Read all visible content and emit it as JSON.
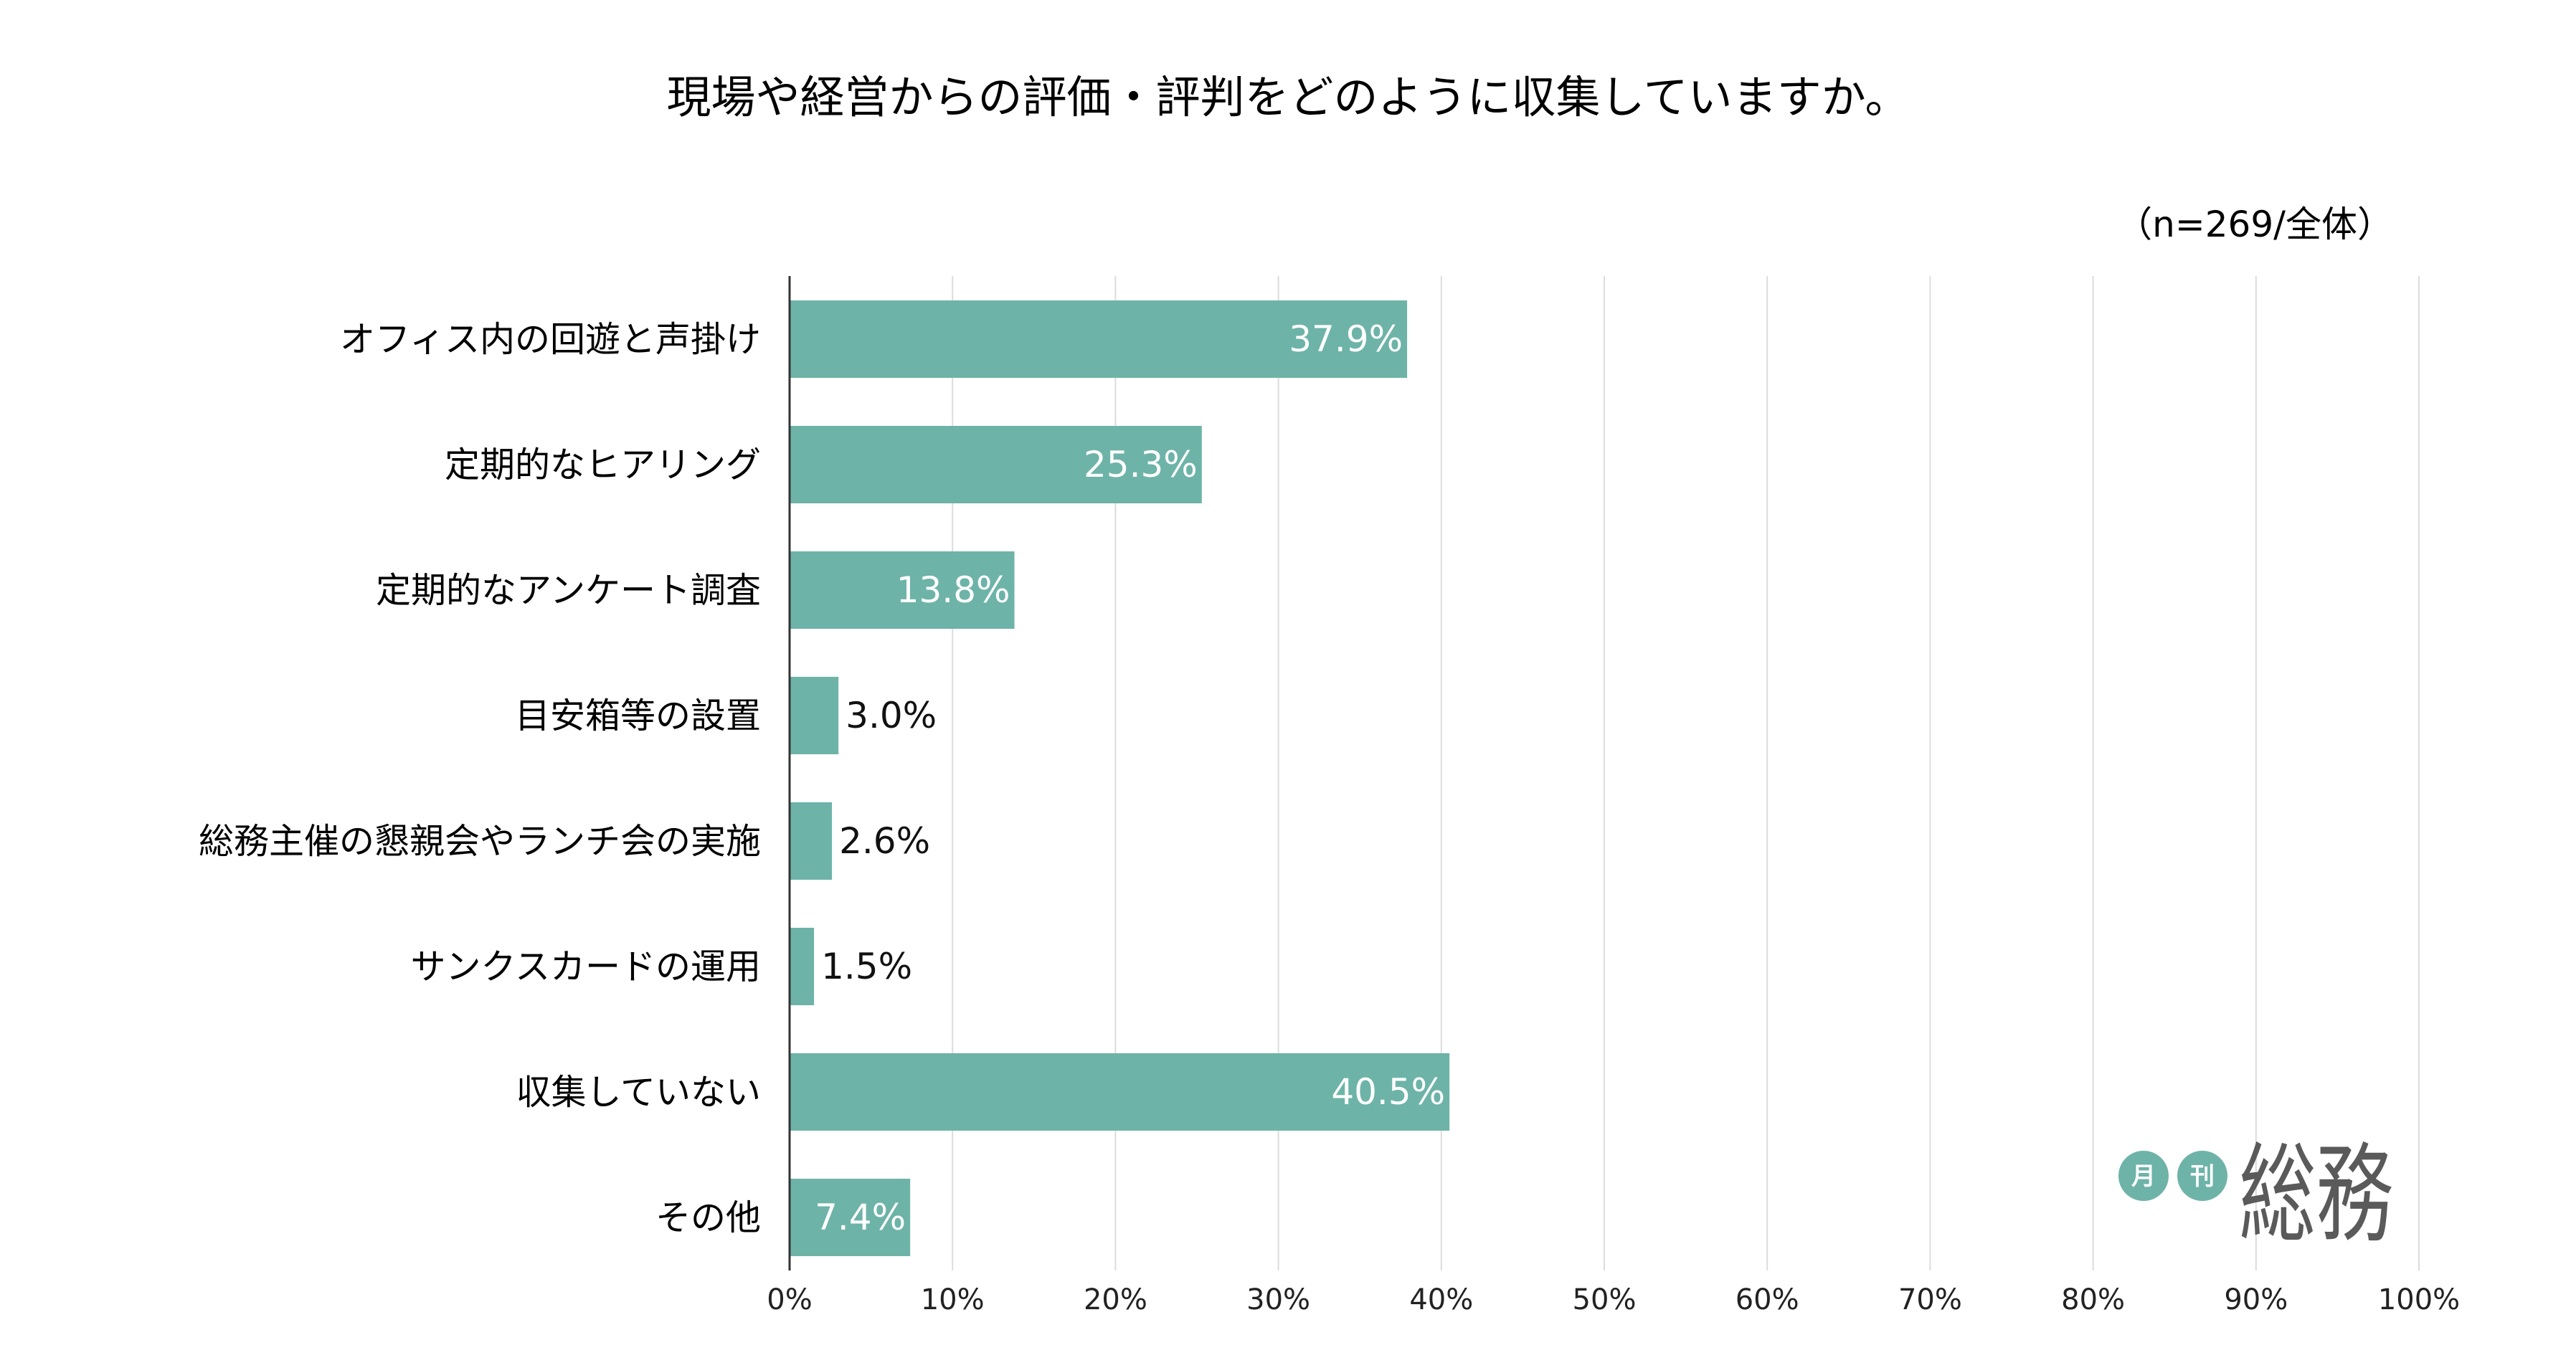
{
  "chart_data": {
    "type": "bar",
    "orientation": "horizontal",
    "title": "現場や経営からの評価・評判をどのように収集していますか。",
    "sample_note": "（n=269/全体）",
    "categories": [
      "オフィス内の回遊と声掛け",
      "定期的なヒアリング",
      "定期的なアンケート調査",
      "目安箱等の設置",
      "総務主催の懇親会やランチ会の実施",
      "サンクスカードの運用",
      "収集していない",
      "その他"
    ],
    "values": [
      37.9,
      25.3,
      13.8,
      3.0,
      2.6,
      1.5,
      40.5,
      7.4
    ],
    "value_labels": [
      "37.9%",
      "25.3%",
      "13.8%",
      "3.0%",
      "2.6%",
      "1.5%",
      "40.5%",
      "7.4%"
    ],
    "x_ticks": [
      "0%",
      "10%",
      "20%",
      "30%",
      "40%",
      "50%",
      "60%",
      "70%",
      "80%",
      "90%",
      "100%"
    ],
    "xlim": [
      0,
      100
    ],
    "xlabel": "",
    "ylabel": "",
    "grid": true,
    "legend": "none",
    "colors": {
      "bar": "#6db3a8",
      "grid": "#dcdcdc",
      "axis": "#333333"
    }
  },
  "logo": {
    "circle_1": "月",
    "circle_2": "刊",
    "word": "総務",
    "color": "#6db3a8"
  }
}
